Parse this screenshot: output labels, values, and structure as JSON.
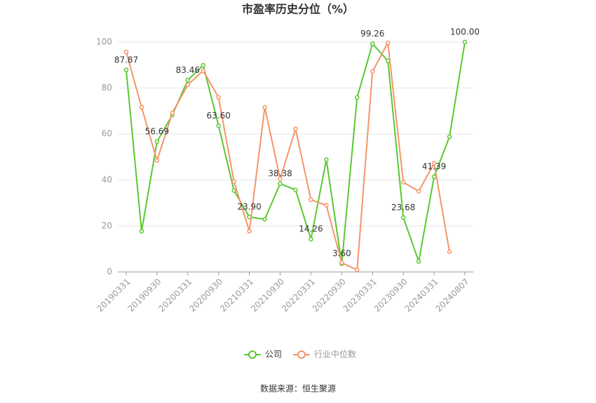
{
  "chart_data": {
    "type": "line",
    "title": "市盈率历史分位（%）",
    "source": "数据来源：恒生聚源",
    "categories": [
      "20190331",
      null,
      "20190930",
      null,
      "20200331",
      null,
      "20200930",
      null,
      "20210331",
      null,
      "20210930",
      null,
      "20220331",
      null,
      "20220930",
      null,
      "20230331",
      null,
      "20230930",
      null,
      "20240331",
      null,
      "20240807"
    ],
    "series": [
      {
        "name": "公司",
        "color": "#5ac832",
        "values": [
          87.87,
          17.7,
          56.69,
          68.3,
          83.46,
          89.9,
          63.6,
          35.4,
          23.9,
          22.9,
          38.38,
          35.7,
          14.26,
          48.8,
          3.6,
          75.9,
          99.26,
          91.8,
          23.68,
          4.6,
          41.39,
          58.8,
          100.0
        ],
        "value_labels": [
          "87.87",
          null,
          "56.69",
          null,
          "83.46",
          null,
          "63.60",
          null,
          "23.90",
          null,
          "38.38",
          null,
          "14.26",
          null,
          "3.60",
          null,
          "99.26",
          null,
          "23.68",
          null,
          "41.39",
          null,
          "100.00"
        ]
      },
      {
        "name": "行业中位数",
        "color": "#f4956a",
        "values": [
          95.7,
          71.6,
          48.5,
          69.2,
          81.4,
          87.5,
          75.9,
          39.3,
          17.7,
          71.6,
          40.5,
          62.2,
          31.4,
          29.0,
          4.0,
          0.9,
          87.2,
          99.7,
          39.0,
          35.1,
          47.3,
          8.8,
          null
        ]
      }
    ],
    "ylim": [
      0,
      100
    ],
    "yticks": [
      0,
      20,
      40,
      60,
      80,
      100
    ],
    "grid": true
  }
}
